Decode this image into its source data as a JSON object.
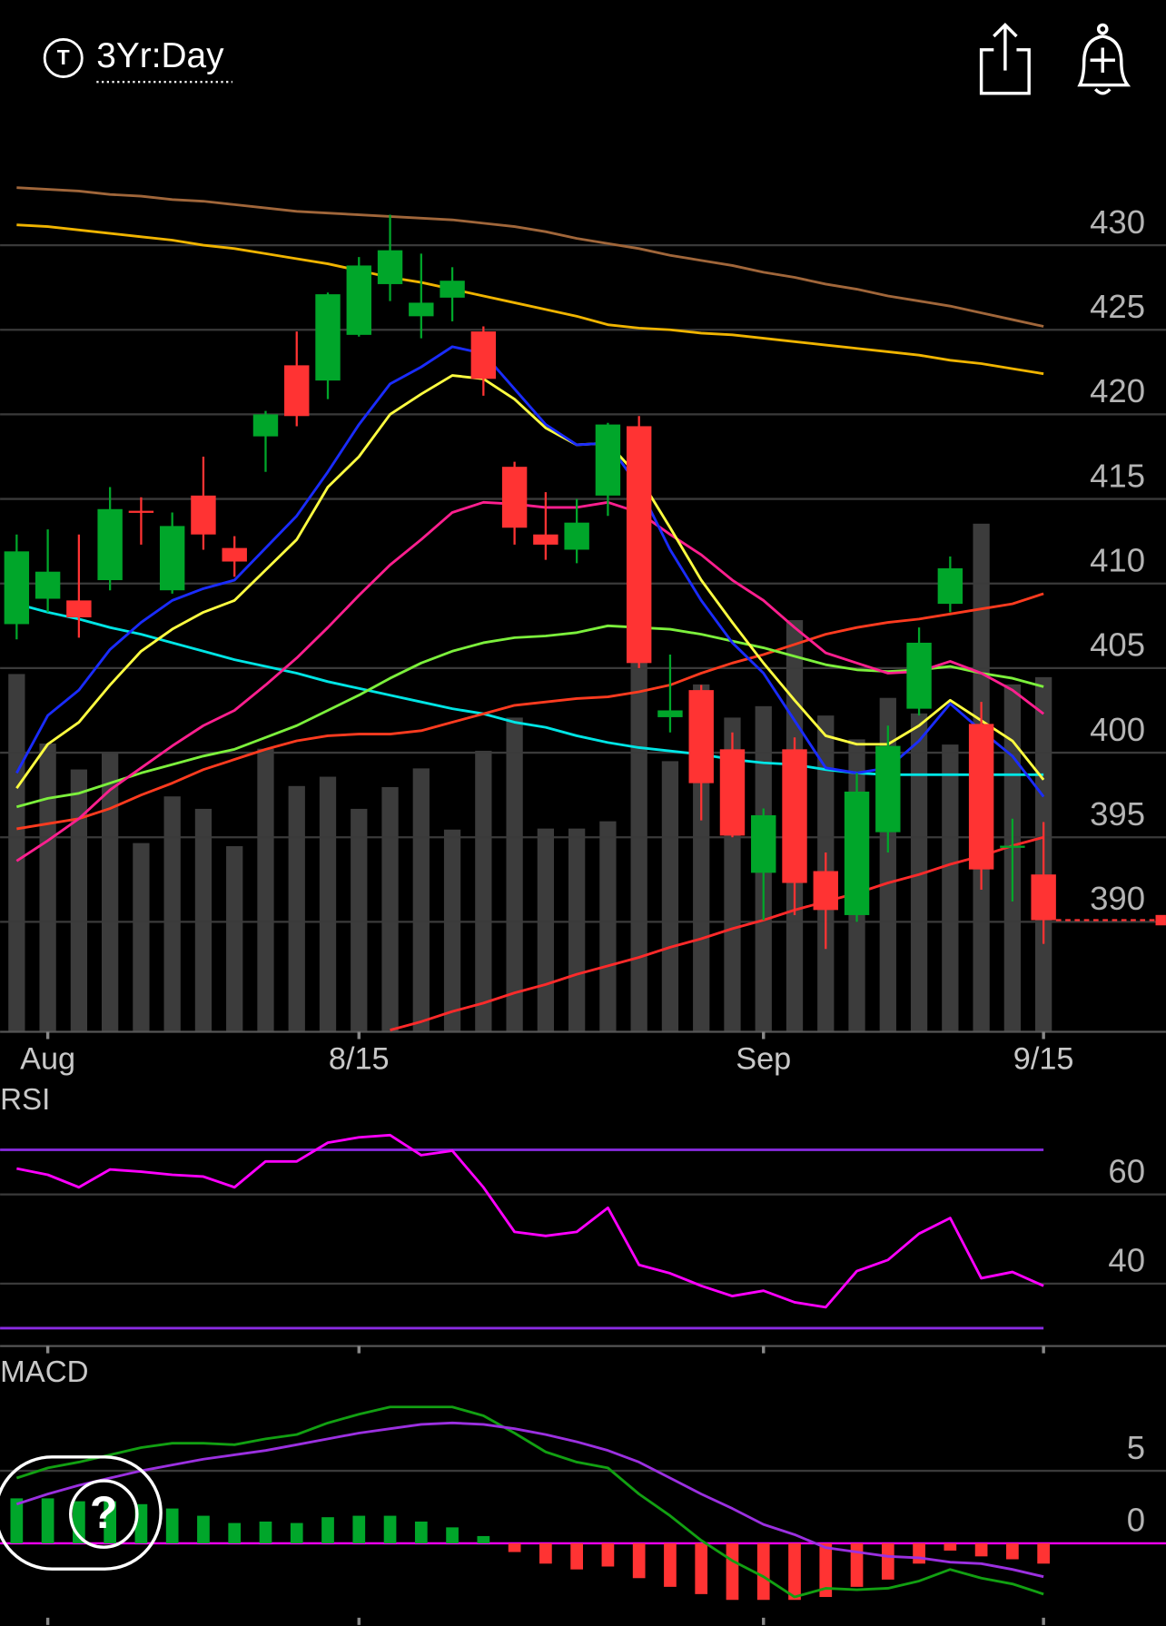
{
  "header": {
    "symbol_badge": "T",
    "period": "3Yr:Day"
  },
  "help_button": {
    "label": "?"
  },
  "chart_data": [
    {
      "type": "candlestick",
      "categories": [
        null,
        "Aug",
        null,
        null,
        null,
        null,
        null,
        null,
        null,
        null,
        null,
        "8/15",
        null,
        null,
        null,
        null,
        null,
        null,
        null,
        null,
        null,
        null,
        null,
        null,
        "Sep",
        null,
        null,
        null,
        null,
        null,
        null,
        null,
        null,
        "9/15"
      ],
      "open": [
        407.6,
        409.1,
        409.0,
        410.2,
        414.3,
        409.6,
        415.2,
        412.1,
        418.7,
        422.9,
        422.0,
        424.7,
        427.7,
        425.8,
        426.9,
        424.9,
        416.9,
        412.9,
        412.0,
        415.2,
        419.3,
        402.1,
        403.7,
        400.2,
        392.9,
        400.2,
        393.0,
        390.4,
        395.3,
        402.6,
        408.8,
        401.7,
        394.4,
        392.8
      ],
      "high": [
        412.9,
        413.2,
        412.9,
        415.7,
        415.1,
        414.2,
        417.5,
        412.8,
        420.2,
        424.9,
        427.2,
        429.3,
        431.8,
        429.5,
        428.7,
        425.2,
        417.2,
        415.4,
        415.0,
        419.5,
        419.9,
        405.8,
        404.0,
        401.2,
        396.7,
        400.9,
        394.1,
        398.8,
        401.6,
        407.4,
        411.6,
        403.0,
        396.1,
        395.9
      ],
      "low": [
        406.7,
        408.3,
        406.8,
        409.6,
        412.3,
        409.4,
        412.0,
        410.4,
        416.6,
        419.3,
        420.9,
        424.6,
        426.7,
        424.5,
        425.5,
        421.1,
        412.3,
        411.4,
        411.2,
        414.0,
        405.0,
        401.2,
        396.0,
        395.0,
        390.1,
        390.4,
        388.4,
        390.0,
        394.1,
        402.2,
        408.3,
        391.9,
        391.2,
        388.7
      ],
      "close": [
        411.9,
        410.7,
        408.0,
        414.4,
        414.2,
        413.4,
        412.9,
        411.3,
        420.0,
        419.9,
        427.1,
        428.8,
        429.7,
        426.6,
        427.9,
        422.1,
        413.3,
        412.3,
        413.6,
        419.4,
        405.3,
        402.5,
        398.2,
        395.1,
        396.3,
        392.3,
        390.7,
        397.7,
        400.4,
        406.5,
        410.9,
        393.1,
        394.5,
        390.1
      ],
      "volume": [
        34.5,
        27.8,
        25.3,
        27.0,
        18.2,
        22.7,
        21.5,
        17.9,
        27.3,
        23.7,
        24.6,
        21.5,
        23.6,
        25.4,
        19.5,
        27.1,
        30.3,
        19.6,
        19.6,
        20.3,
        39.0,
        26.1,
        33.5,
        30.3,
        31.4,
        39.7,
        30.5,
        28.2,
        32.2,
        30.7,
        27.7,
        49.0,
        33.5,
        34.2
      ],
      "up_color": "#00a62a",
      "down_color": "#ff3333",
      "volume_color": "#3c3c3c",
      "series": [
        {
          "color": "#a0663a",
          "values": [
            433.4,
            433.3,
            433.2,
            433.0,
            432.9,
            432.7,
            432.6,
            432.4,
            432.2,
            432.0,
            431.9,
            431.8,
            431.7,
            431.6,
            431.5,
            431.3,
            431.1,
            430.8,
            430.4,
            430.1,
            429.8,
            429.4,
            429.1,
            428.8,
            428.4,
            428.1,
            427.7,
            427.4,
            427.0,
            426.7,
            426.4,
            426.0,
            425.6,
            425.2
          ]
        },
        {
          "color": "#f0b400",
          "values": [
            431.2,
            431.1,
            430.9,
            430.7,
            430.5,
            430.3,
            430.0,
            429.8,
            429.5,
            429.2,
            428.9,
            428.5,
            428.1,
            427.8,
            427.4,
            427.0,
            426.6,
            426.2,
            425.8,
            425.3,
            425.1,
            425.0,
            424.8,
            424.7,
            424.5,
            424.3,
            424.1,
            423.9,
            423.7,
            423.5,
            423.2,
            423.0,
            422.7,
            422.4
          ]
        },
        {
          "color": "#00e5e5",
          "values": [
            408.8,
            408.3,
            407.9,
            407.4,
            407.0,
            406.5,
            406.0,
            405.5,
            405.1,
            404.7,
            404.2,
            403.8,
            403.4,
            403.0,
            402.6,
            402.3,
            401.8,
            401.5,
            401.0,
            400.6,
            400.3,
            400.1,
            399.9,
            399.6,
            399.4,
            399.3,
            399.0,
            398.8,
            398.7,
            398.7,
            398.7,
            398.7,
            398.7,
            398.7
          ]
        },
        {
          "color": "#ff3b1f",
          "values": [
            395.5,
            395.8,
            396.1,
            396.7,
            397.5,
            398.2,
            399.0,
            399.6,
            400.2,
            400.7,
            401.0,
            401.1,
            401.1,
            401.3,
            401.8,
            402.3,
            402.8,
            403.0,
            403.2,
            403.3,
            403.6,
            404.0,
            404.7,
            405.3,
            405.8,
            406.4,
            407.0,
            407.4,
            407.7,
            407.9,
            408.2,
            408.5,
            408.8,
            409.4
          ]
        },
        {
          "color": "#7cf03c",
          "values": [
            396.8,
            397.3,
            397.6,
            398.2,
            398.8,
            399.3,
            399.8,
            400.2,
            400.9,
            401.6,
            402.5,
            403.4,
            404.4,
            405.3,
            406.0,
            406.5,
            406.8,
            406.9,
            407.1,
            407.5,
            407.4,
            407.3,
            407.0,
            406.6,
            406.2,
            405.7,
            405.2,
            404.9,
            404.8,
            404.9,
            405.1,
            404.7,
            404.4,
            403.9
          ]
        },
        {
          "color": "#ff1f8f",
          "values": [
            393.6,
            394.8,
            396.1,
            397.8,
            399.1,
            400.4,
            401.6,
            402.5,
            404.0,
            405.6,
            407.4,
            409.3,
            411.1,
            412.6,
            414.2,
            414.8,
            414.7,
            414.5,
            414.5,
            414.8,
            414.2,
            412.9,
            411.7,
            410.2,
            409.0,
            407.4,
            405.9,
            405.3,
            404.7,
            404.8,
            405.4,
            404.7,
            403.7,
            402.3
          ]
        },
        {
          "color": "#ffff40",
          "values": [
            397.9,
            400.5,
            401.8,
            404.0,
            406.0,
            407.3,
            408.3,
            409.0,
            410.8,
            412.6,
            415.7,
            417.5,
            420.0,
            421.2,
            422.3,
            422.1,
            420.9,
            419.2,
            418.2,
            418.3,
            416.3,
            413.3,
            410.2,
            407.7,
            405.3,
            403.1,
            401.0,
            400.5,
            400.5,
            401.6,
            403.1,
            401.9,
            400.7,
            398.4
          ]
        },
        {
          "color": "#1a2cff",
          "values": [
            398.8,
            402.2,
            403.7,
            406.1,
            407.7,
            409.0,
            409.7,
            410.2,
            412.1,
            414.0,
            416.6,
            419.4,
            421.8,
            422.8,
            424.0,
            423.6,
            421.5,
            419.4,
            418.2,
            418.3,
            415.7,
            412.0,
            409.0,
            406.5,
            404.7,
            401.9,
            399.1,
            398.8,
            399.1,
            400.7,
            402.9,
            401.3,
            399.8,
            397.4
          ]
        },
        {
          "color": "#ff2a2a",
          "values": [
            null,
            null,
            null,
            null,
            null,
            null,
            null,
            null,
            null,
            null,
            null,
            null,
            383.6,
            384.1,
            384.7,
            385.2,
            385.8,
            386.3,
            386.9,
            387.4,
            387.9,
            388.5,
            389.0,
            389.6,
            390.1,
            390.7,
            391.2,
            391.7,
            392.3,
            392.8,
            393.4,
            393.9,
            394.5,
            395.0
          ]
        }
      ],
      "ylim": [
        383.5,
        435.3
      ],
      "yticks": [
        390,
        395,
        400,
        405,
        410,
        415,
        420,
        425,
        430
      ],
      "grid": true
    },
    {
      "type": "line",
      "title": "RSI",
      "series": [
        {
          "color": "#ff00ff",
          "values": [
            65.8,
            64.4,
            61.6,
            65.6,
            65.1,
            64.4,
            64.0,
            61.6,
            67.4,
            67.4,
            71.6,
            72.8,
            73.3,
            68.8,
            69.8,
            61.6,
            51.6,
            50.7,
            51.6,
            57.0,
            44.2,
            42.3,
            39.5,
            37.2,
            38.4,
            35.8,
            34.7,
            42.8,
            45.3,
            51.2,
            54.7,
            41.2,
            42.6,
            39.5
          ]
        }
      ],
      "bands": [
        70,
        30
      ],
      "band_color": "#8a2be2",
      "ylim": [
        26,
        76.7
      ],
      "yticks": [
        40,
        60
      ],
      "grid": true
    },
    {
      "type": "macd",
      "title": "MACD",
      "histogram": {
        "up_color": "#00a62a",
        "down_color": "#ff3333",
        "values": [
          3.1,
          3.1,
          2.9,
          2.9,
          2.7,
          2.4,
          1.9,
          1.4,
          1.5,
          1.4,
          1.8,
          1.9,
          1.9,
          1.5,
          1.1,
          0.5,
          -0.6,
          -1.4,
          -1.8,
          -1.6,
          -2.4,
          -3.0,
          -3.5,
          -3.9,
          -3.9,
          -3.9,
          -3.7,
          -3.0,
          -2.5,
          -1.4,
          -0.5,
          -0.9,
          -1.1,
          -1.4
        ]
      },
      "series": [
        {
          "color": "#12a012",
          "values": [
            4.5,
            5.2,
            5.6,
            6.1,
            6.6,
            6.9,
            6.9,
            6.8,
            7.2,
            7.5,
            8.3,
            8.9,
            9.4,
            9.4,
            9.4,
            8.8,
            7.6,
            6.3,
            5.6,
            5.2,
            3.4,
            1.9,
            0.2,
            -1.2,
            -2.3,
            -3.7,
            -3.1,
            -3.2,
            -3.1,
            -2.6,
            -1.8,
            -2.4,
            -2.8,
            -3.5
          ]
        },
        {
          "color": "#9b30e0",
          "values": [
            2.7,
            3.4,
            4.0,
            4.5,
            5.0,
            5.4,
            5.8,
            6.1,
            6.4,
            6.8,
            7.2,
            7.6,
            7.9,
            8.2,
            8.3,
            8.2,
            7.9,
            7.5,
            7.0,
            6.4,
            5.6,
            4.5,
            3.4,
            2.4,
            1.3,
            0.6,
            -0.3,
            -0.6,
            -0.9,
            -1.0,
            -1.3,
            -1.4,
            -1.8,
            -2.3
          ]
        }
      ],
      "zero_color": "#ff00ff",
      "ylim": [
        -5.7,
        10.6
      ],
      "yticks": [
        0,
        5
      ],
      "grid": true
    }
  ]
}
